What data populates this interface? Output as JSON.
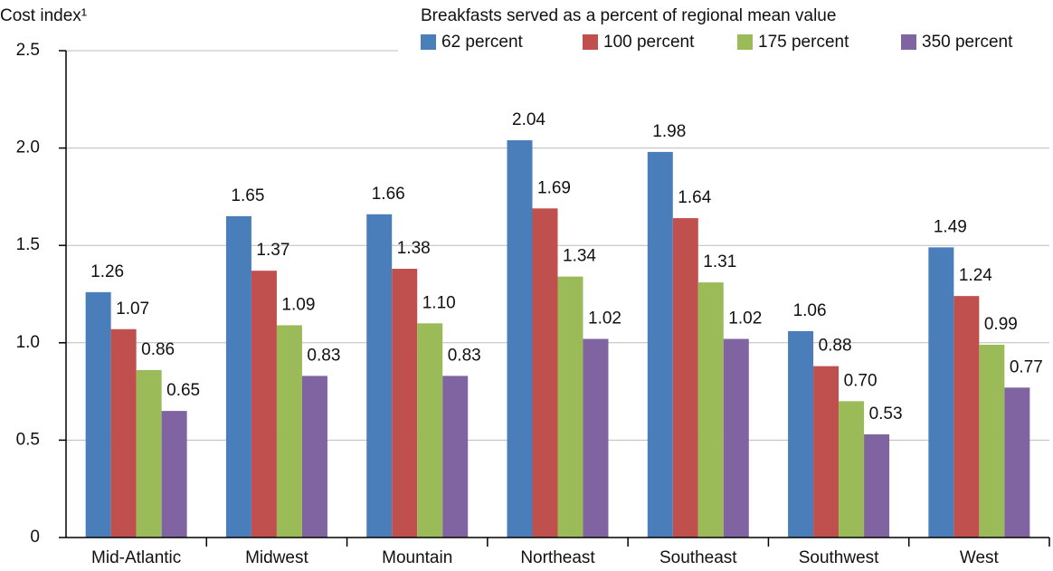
{
  "chart_data": {
    "type": "bar",
    "y_label": "Cost index¹",
    "legend_title": "Breakfasts served as a percent of regional mean value",
    "categories": [
      "Mid-Atlantic",
      "Midwest",
      "Mountain",
      "Northeast",
      "Southeast",
      "Southwest",
      "West"
    ],
    "series": [
      {
        "name": "62 percent",
        "color": "#4a7ebb",
        "values": [
          1.26,
          1.65,
          1.66,
          2.04,
          1.98,
          1.06,
          1.49
        ]
      },
      {
        "name": "100 percent",
        "color": "#c0504d",
        "values": [
          1.07,
          1.37,
          1.38,
          1.69,
          1.64,
          0.88,
          1.24
        ]
      },
      {
        "name": "175 percent",
        "color": "#9bbb59",
        "values": [
          0.86,
          1.09,
          1.1,
          1.34,
          1.31,
          0.7,
          0.99
        ],
        "value_labels": [
          "0.86",
          "1.09",
          "1.10",
          "1.34",
          "1.31",
          "0.70",
          "0.99"
        ]
      },
      {
        "name": "350 percent",
        "color": "#8064a2",
        "values": [
          0.65,
          0.83,
          0.83,
          1.02,
          1.02,
          0.53,
          0.77
        ]
      }
    ],
    "ylim": [
      0,
      2.5
    ],
    "yticks": [
      0,
      0.5,
      {
        "value": 1,
        "label": "1.0"
      },
      1.5,
      {
        "value": 2,
        "label": "2.0"
      },
      2.5
    ],
    "grid": true
  }
}
